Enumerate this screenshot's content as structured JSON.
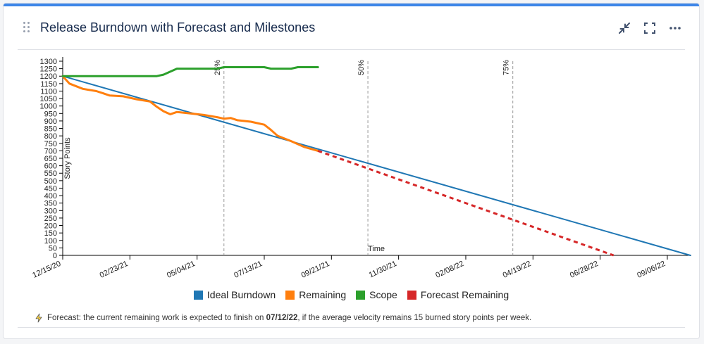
{
  "widget": {
    "title": "Release Burndown with Forecast and Milestones"
  },
  "forecast": {
    "prefix": "Forecast: the current remaining work is expected to finish on ",
    "date": "07/12/22",
    "suffix": ", if the average velocity remains 15 burned story points per week."
  },
  "colors": {
    "ideal": "#1f77b4",
    "remaining": "#ff7f0e",
    "scope": "#2ca02c",
    "forecast": "#d62728",
    "milestone": "#999999",
    "milestone_active": "#d62728"
  },
  "icons": {
    "drag": "drag-handle-icon",
    "shrink": "shrink-icon",
    "fullscreen": "fullscreen-icon",
    "more": "more-icon",
    "lightning": "lightning-icon"
  },
  "chart_data": {
    "type": "line",
    "title": "",
    "xlabel": "Time",
    "ylabel": "Story Points",
    "ylim": [
      0,
      1300
    ],
    "yticks": [
      0,
      50,
      100,
      150,
      200,
      250,
      300,
      350,
      400,
      450,
      500,
      550,
      600,
      650,
      700,
      750,
      800,
      850,
      900,
      950,
      1000,
      1050,
      1100,
      1150,
      1200,
      1250,
      1300
    ],
    "xlim": [
      "2020-12-15",
      "2022-10-01"
    ],
    "xticks": [
      {
        "date": "2020-12-15",
        "label": "12/15/20"
      },
      {
        "date": "2021-02-23",
        "label": "02/23/21"
      },
      {
        "date": "2021-05-04",
        "label": "05/04/21"
      },
      {
        "date": "2021-07-13",
        "label": "07/13/21"
      },
      {
        "date": "2021-09-21",
        "label": "09/21/21"
      },
      {
        "date": "2021-11-30",
        "label": "11/30/21"
      },
      {
        "date": "2022-02-08",
        "label": "02/08/22"
      },
      {
        "date": "2022-04-19",
        "label": "04/19/22"
      },
      {
        "date": "2022-06-28",
        "label": "06/28/22"
      },
      {
        "date": "2022-09-06",
        "label": "09/06/22"
      }
    ],
    "milestones": [
      {
        "label": "25%",
        "date": "2021-06-01",
        "reached": true
      },
      {
        "label": "50%",
        "date": "2021-10-29",
        "reached": false
      },
      {
        "label": "75%",
        "date": "2022-03-29",
        "reached": false
      }
    ],
    "series": [
      {
        "name": "Ideal Burndown",
        "style": "solid",
        "points": [
          [
            "2020-12-15",
            1200
          ],
          [
            "2022-09-30",
            0
          ]
        ]
      },
      {
        "name": "Remaining",
        "style": "solid",
        "points": [
          [
            "2020-12-15",
            1200
          ],
          [
            "2020-12-22",
            1150
          ],
          [
            "2021-01-05",
            1115
          ],
          [
            "2021-01-19",
            1100
          ],
          [
            "2021-01-26",
            1085
          ],
          [
            "2021-02-02",
            1070
          ],
          [
            "2021-02-16",
            1065
          ],
          [
            "2021-02-23",
            1055
          ],
          [
            "2021-03-02",
            1045
          ],
          [
            "2021-03-16",
            1030
          ],
          [
            "2021-03-23",
            995
          ],
          [
            "2021-03-30",
            965
          ],
          [
            "2021-04-06",
            945
          ],
          [
            "2021-04-13",
            960
          ],
          [
            "2021-04-27",
            950
          ],
          [
            "2021-05-11",
            940
          ],
          [
            "2021-05-25",
            925
          ],
          [
            "2021-06-01",
            915
          ],
          [
            "2021-06-08",
            920
          ],
          [
            "2021-06-15",
            905
          ],
          [
            "2021-06-29",
            895
          ],
          [
            "2021-07-06",
            885
          ],
          [
            "2021-07-13",
            875
          ],
          [
            "2021-07-20",
            840
          ],
          [
            "2021-07-27",
            800
          ],
          [
            "2021-08-10",
            765
          ],
          [
            "2021-08-24",
            725
          ],
          [
            "2021-09-07",
            700
          ]
        ]
      },
      {
        "name": "Scope",
        "style": "solid",
        "points": [
          [
            "2020-12-15",
            1200
          ],
          [
            "2021-03-23",
            1200
          ],
          [
            "2021-03-30",
            1210
          ],
          [
            "2021-04-06",
            1230
          ],
          [
            "2021-04-13",
            1250
          ],
          [
            "2021-05-25",
            1250
          ],
          [
            "2021-06-01",
            1260
          ],
          [
            "2021-07-13",
            1260
          ],
          [
            "2021-07-20",
            1250
          ],
          [
            "2021-08-10",
            1250
          ],
          [
            "2021-08-17",
            1260
          ],
          [
            "2021-09-07",
            1260
          ]
        ]
      },
      {
        "name": "Forecast Remaining",
        "style": "dashed",
        "points": [
          [
            "2021-09-07",
            700
          ],
          [
            "2022-07-12",
            0
          ]
        ]
      }
    ]
  }
}
